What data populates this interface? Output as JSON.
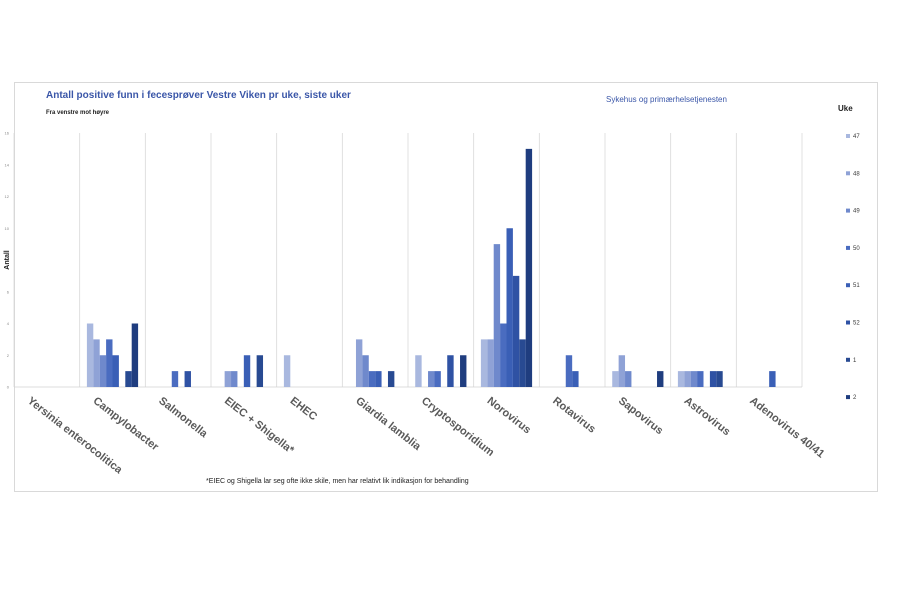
{
  "header": {
    "title": "Antall positive funn i fecesprøver Vestre Viken pr uke, siste uker",
    "subtitle": "Fra venstre mot høyre",
    "right_note": "Sykehus og primærhelsetjenesten",
    "legend_title": "Uke"
  },
  "footnote": "*EIEC og Shigella lar seg ofte ikke skile, men har relativt lik indikasjon for behandling",
  "chart_data": {
    "type": "bar",
    "title": "Antall positive funn i fecesprøver Vestre Viken pr uke, siste uker",
    "ylabel": "Antall",
    "xlabel": "",
    "ylim": [
      0,
      16
    ],
    "yticks": [
      "0",
      "2",
      "4",
      "6",
      "8",
      "10",
      "12",
      "14",
      "16"
    ],
    "grid": "vertical separators between categories",
    "legend_position": "right",
    "categories": [
      "Yersinia enterocolitica",
      "Campylobacter",
      "Salmonella",
      "EIEC + Shigella*",
      "EHEC",
      "Giardia lamblia",
      "Cryptosporidium",
      "Norovirus",
      "Rotavirus",
      "Sapovirus",
      "Astrovirus",
      "Adenovirus 40/41"
    ],
    "series": [
      {
        "name": "47",
        "color": "#a9b8df",
        "values": [
          0,
          4,
          0,
          0,
          2,
          0,
          2,
          3,
          0,
          1,
          1,
          0
        ]
      },
      {
        "name": "48",
        "color": "#8fa2d6",
        "values": [
          0,
          3,
          0,
          1,
          0,
          3,
          0,
          3,
          0,
          2,
          1,
          0
        ]
      },
      {
        "name": "49",
        "color": "#6f89cc",
        "values": [
          0,
          2,
          0,
          1,
          0,
          2,
          1,
          9,
          0,
          1,
          1,
          0
        ]
      },
      {
        "name": "50",
        "color": "#4a6cc0",
        "values": [
          0,
          3,
          1,
          0,
          0,
          1,
          1,
          4,
          2,
          0,
          1,
          0
        ]
      },
      {
        "name": "51",
        "color": "#3a5fb6",
        "values": [
          0,
          2,
          0,
          2,
          0,
          1,
          0,
          10,
          1,
          0,
          0,
          1
        ]
      },
      {
        "name": "52",
        "color": "#2f52a4",
        "values": [
          0,
          0,
          1,
          0,
          0,
          0,
          2,
          7,
          0,
          0,
          1,
          0
        ]
      },
      {
        "name": "1",
        "color": "#284a92",
        "values": [
          0,
          1,
          0,
          2,
          0,
          1,
          0,
          3,
          0,
          0,
          1,
          0
        ]
      },
      {
        "name": "2",
        "color": "#1f3d7f",
        "values": [
          0,
          4,
          0,
          0,
          0,
          0,
          2,
          15,
          0,
          1,
          0,
          0
        ]
      }
    ]
  }
}
